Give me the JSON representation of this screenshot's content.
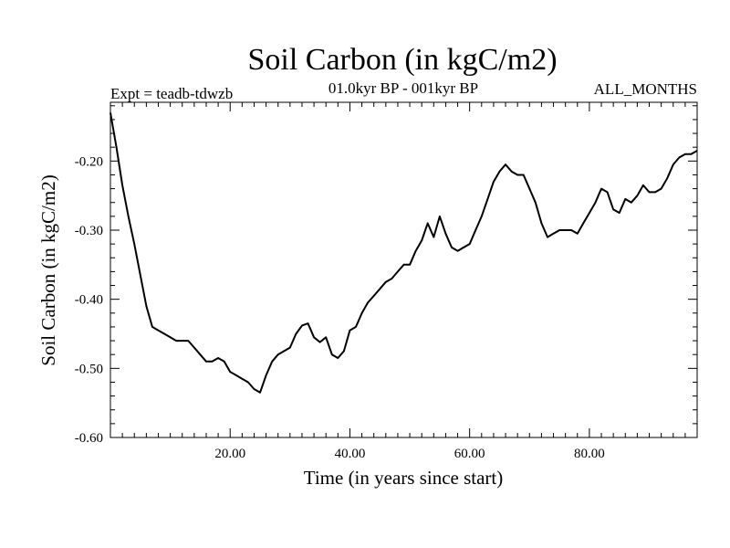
{
  "chart_data": {
    "type": "line",
    "title": "Soil Carbon (in kgC/m2)",
    "subtitle_left": "Expt = teadb-tdwzb",
    "subtitle_center": "01.0kyr BP - 001kyr BP",
    "subtitle_right": "ALL_MONTHS",
    "xlabel": "Time (in years since start)",
    "ylabel": "Soil Carbon (in kgC/m2)",
    "xlim": [
      0,
      98
    ],
    "ylim": [
      -0.6,
      -0.115
    ],
    "x_ticks": [
      20,
      40,
      60,
      80
    ],
    "x_tick_labels": [
      "20.00",
      "40.00",
      "60.00",
      "80.00"
    ],
    "y_ticks": [
      -0.6,
      -0.5,
      -0.4,
      -0.3,
      -0.2
    ],
    "y_tick_labels": [
      "-0.60",
      "-0.50",
      "-0.40",
      "-0.30",
      "-0.20"
    ],
    "grid": false,
    "series": [
      {
        "name": "Soil Carbon",
        "x": [
          0,
          1,
          2,
          3,
          4,
          5,
          6,
          7,
          8,
          9,
          10,
          11,
          12,
          13,
          14,
          15,
          16,
          17,
          18,
          19,
          20,
          21,
          22,
          23,
          24,
          25,
          26,
          27,
          28,
          29,
          30,
          31,
          32,
          33,
          34,
          35,
          36,
          37,
          38,
          39,
          40,
          41,
          42,
          43,
          44,
          45,
          46,
          47,
          48,
          49,
          50,
          51,
          52,
          53,
          54,
          55,
          56,
          57,
          58,
          59,
          60,
          61,
          62,
          63,
          64,
          65,
          66,
          67,
          68,
          69,
          70,
          71,
          72,
          73,
          74,
          75,
          76,
          77,
          78,
          79,
          80,
          81,
          82,
          83,
          84,
          85,
          86,
          87,
          88,
          89,
          90,
          91,
          92,
          93,
          94,
          95,
          96,
          97,
          98
        ],
        "values": [
          -0.13,
          -0.18,
          -0.235,
          -0.28,
          -0.32,
          -0.365,
          -0.41,
          -0.44,
          -0.445,
          -0.45,
          -0.455,
          -0.46,
          -0.46,
          -0.46,
          -0.47,
          -0.48,
          -0.49,
          -0.49,
          -0.485,
          -0.49,
          -0.505,
          -0.51,
          -0.515,
          -0.52,
          -0.53,
          -0.535,
          -0.51,
          -0.49,
          -0.48,
          -0.475,
          -0.47,
          -0.45,
          -0.438,
          -0.435,
          -0.455,
          -0.462,
          -0.455,
          -0.48,
          -0.485,
          -0.475,
          -0.445,
          -0.44,
          -0.42,
          -0.405,
          -0.395,
          -0.385,
          -0.375,
          -0.37,
          -0.36,
          -0.35,
          -0.35,
          -0.33,
          -0.315,
          -0.29,
          -0.31,
          -0.28,
          -0.305,
          -0.325,
          -0.33,
          -0.325,
          -0.32,
          -0.3,
          -0.28,
          -0.255,
          -0.23,
          -0.215,
          -0.205,
          -0.215,
          -0.22,
          -0.22,
          -0.24,
          -0.26,
          -0.29,
          -0.31,
          -0.305,
          -0.3,
          -0.3,
          -0.3,
          -0.305,
          -0.29,
          -0.275,
          -0.26,
          -0.24,
          -0.245,
          -0.27,
          -0.275,
          -0.255,
          -0.26,
          -0.25,
          -0.235,
          -0.245,
          -0.245,
          -0.24,
          -0.225,
          -0.205,
          -0.195,
          -0.19,
          -0.19,
          -0.185
        ]
      }
    ]
  }
}
